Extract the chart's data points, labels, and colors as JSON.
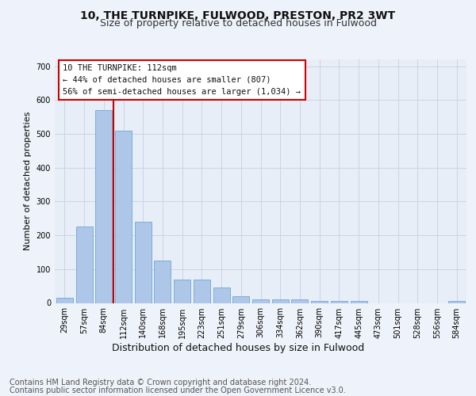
{
  "title1": "10, THE TURNPIKE, FULWOOD, PRESTON, PR2 3WT",
  "title2": "Size of property relative to detached houses in Fulwood",
  "xlabel": "Distribution of detached houses by size in Fulwood",
  "ylabel": "Number of detached properties",
  "footer1": "Contains HM Land Registry data © Crown copyright and database right 2024.",
  "footer2": "Contains public sector information licensed under the Open Government Licence v3.0.",
  "annotation_line1": "10 THE TURNPIKE: 112sqm",
  "annotation_line2": "← 44% of detached houses are smaller (807)",
  "annotation_line3": "56% of semi-detached houses are larger (1,034) →",
  "categories": [
    "29sqm",
    "57sqm",
    "84sqm",
    "112sqm",
    "140sqm",
    "168sqm",
    "195sqm",
    "223sqm",
    "251sqm",
    "279sqm",
    "306sqm",
    "334sqm",
    "362sqm",
    "390sqm",
    "417sqm",
    "445sqm",
    "473sqm",
    "501sqm",
    "528sqm",
    "556sqm",
    "584sqm"
  ],
  "values": [
    15,
    225,
    570,
    510,
    240,
    125,
    70,
    70,
    45,
    20,
    10,
    10,
    10,
    5,
    5,
    5,
    0,
    0,
    0,
    0,
    5
  ],
  "bar_color": "#aec6e8",
  "bar_edge_color": "#5a9fd4",
  "highlight_line_color": "#cc0000",
  "annotation_box_color": "#cc0000",
  "ylim": [
    0,
    720
  ],
  "yticks": [
    0,
    100,
    200,
    300,
    400,
    500,
    600,
    700
  ],
  "bg_color": "#eef2fa",
  "plot_bg_color": "#e8eef8",
  "grid_color": "#c8d0e0",
  "title1_fontsize": 10,
  "title2_fontsize": 9,
  "xlabel_fontsize": 9,
  "ylabel_fontsize": 8,
  "tick_fontsize": 7,
  "footer_fontsize": 7,
  "ann_fontsize": 7.5
}
